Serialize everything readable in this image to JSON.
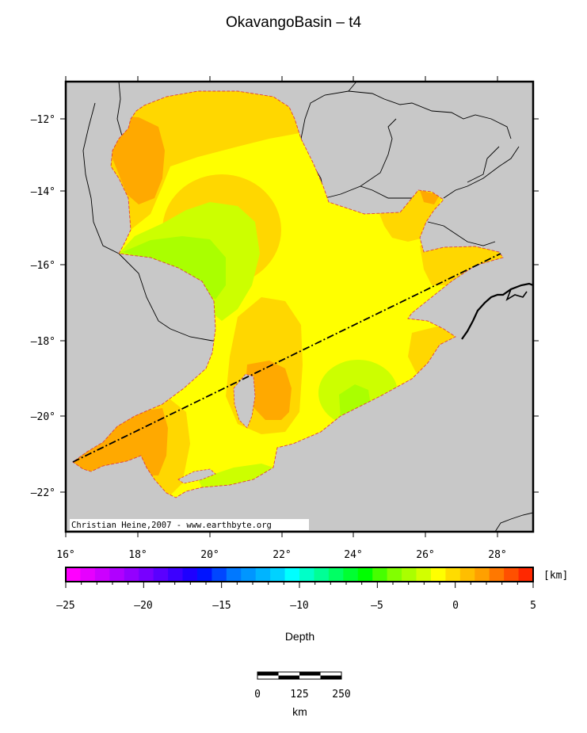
{
  "title": "OkavangoBasin – t4",
  "credit": "Christian Heine,2007 - www.earthbyte.org",
  "lat_labels": [
    "–12°",
    "–14°",
    "–16°",
    "–18°",
    "–20°",
    "–22°"
  ],
  "lon_labels": [
    "16°",
    "18°",
    "20°",
    "22°",
    "24°",
    "26°",
    "28°"
  ],
  "colorbar": {
    "unit": "[km]",
    "tick_labels": [
      "–25",
      "–20",
      "–15",
      "–10",
      "–5",
      "0",
      "5"
    ],
    "label": "Depth",
    "colors": [
      "#ff00ff",
      "#e600ff",
      "#cc00ff",
      "#b000ff",
      "#9400ff",
      "#7800ff",
      "#5a00ff",
      "#3c00ff",
      "#1e00ff",
      "#0014ff",
      "#0046ff",
      "#0078ff",
      "#0096ff",
      "#00b4ff",
      "#00d2ff",
      "#00ffff",
      "#00ffc8",
      "#00ff96",
      "#00ff64",
      "#00ff32",
      "#00ff00",
      "#46ff00",
      "#82ff00",
      "#aaff00",
      "#d2ff00",
      "#ffff00",
      "#ffdc00",
      "#ffbe00",
      "#ffa000",
      "#ff7800",
      "#ff5000",
      "#ff2800"
    ]
  },
  "scalebar": {
    "tick_labels": [
      "0",
      "125",
      "250"
    ],
    "unit": "km"
  },
  "colors": {
    "land": "#c8c8c8",
    "yellow": "#ffff00",
    "light_orange": "#ffd700",
    "orange": "#ffa900",
    "yellow_green": "#ccff00",
    "green": "#aaff00",
    "outline": "#e04040"
  }
}
